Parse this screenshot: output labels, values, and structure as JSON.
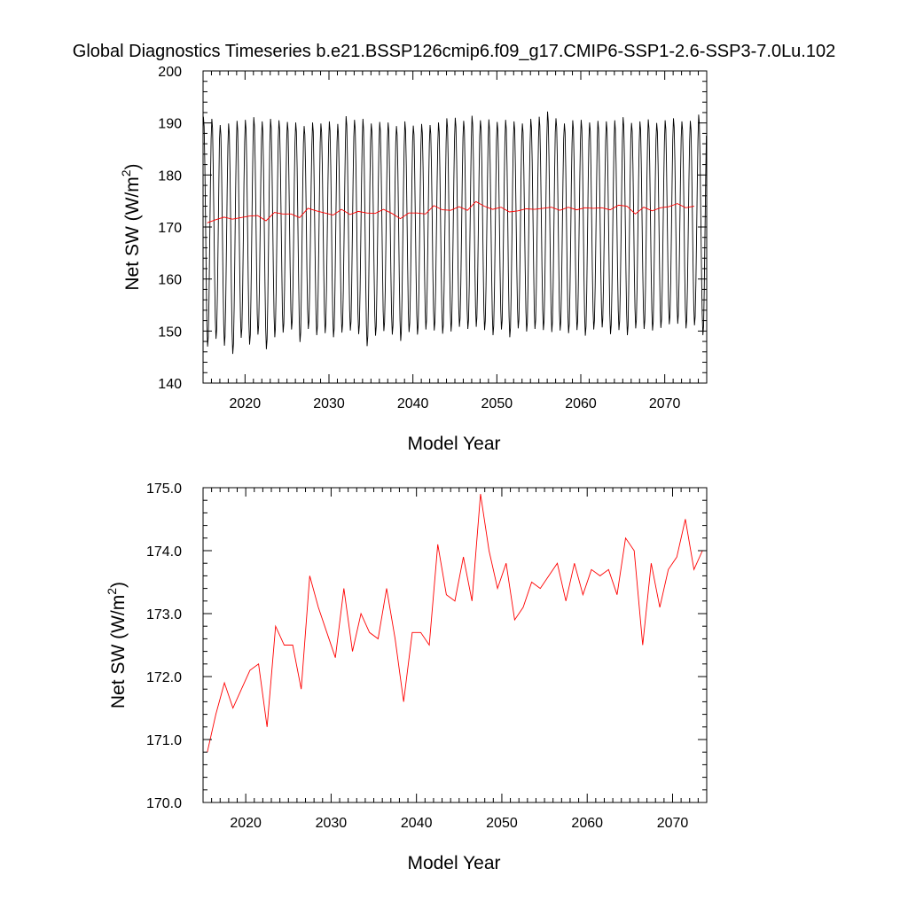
{
  "title": "Global Diagnostics Timeseries b.e21.BSSP126cmip6.f09_g17.CMIP6-SSP1-2.6-SSP3-7.0Lu.102",
  "chart_data": [
    {
      "type": "line",
      "xlabel": "Model Year",
      "ylabel": "Net SW (W/m",
      "ylabel_sup": "2",
      "ylabel_close": ")",
      "xlim": [
        2015,
        2075
      ],
      "ylim": [
        140,
        200
      ],
      "x_ticks": [
        2020,
        2030,
        2040,
        2050,
        2060,
        2070
      ],
      "y_ticks": [
        140,
        150,
        160,
        170,
        180,
        190,
        200
      ],
      "y_tick_labels": [
        "140",
        "150",
        "160",
        "170",
        "180",
        "190",
        "200"
      ],
      "monthly_series": {
        "color": "#000000",
        "start_year": 2015,
        "annual_max": [
          191.2,
          190.8,
          189.6,
          189.9,
          190.4,
          190.6,
          191.1,
          190.3,
          190.8,
          190.5,
          190.2,
          190.1,
          189.4,
          190.1,
          189.9,
          190.3,
          189.8,
          191.3,
          190.6,
          190.8,
          189.9,
          190.2,
          190.1,
          189.4,
          190.3,
          189.5,
          189.8,
          189.6,
          190.1,
          190.9,
          191.0,
          190.4,
          191.4,
          190.5,
          190.7,
          190.2,
          190.6,
          190.3,
          189.9,
          190.8,
          191.2,
          192.2,
          190.9,
          189.9,
          190.5,
          190.6,
          190.1,
          190.4,
          190.3,
          190.5,
          191.1,
          190.0,
          190.3,
          190.7,
          190.0,
          190.5,
          190.9,
          190.3,
          190.4,
          191.6
        ],
        "annual_min": [
          147.0,
          148.5,
          147.2,
          145.6,
          148.7,
          147.4,
          149.3,
          146.5,
          148.8,
          149.7,
          150.3,
          147.9,
          150.4,
          149.2,
          149.6,
          148.8,
          149.7,
          150.1,
          149.4,
          147.1,
          149.1,
          150.0,
          149.3,
          148.1,
          149.8,
          149.3,
          150.3,
          150.1,
          149.5,
          149.9,
          150.8,
          150.4,
          150.8,
          150.2,
          149.2,
          150.3,
          148.8,
          150.5,
          149.9,
          150.4,
          150.2,
          149.8,
          150.1,
          149.6,
          150.2,
          149.1,
          150.3,
          150.7,
          149.4,
          150.2,
          149.2,
          150.5,
          150.4,
          150.1,
          150.6,
          151.3,
          151.4,
          150.5,
          151.1,
          149.2
        ]
      },
      "annual_series": {
        "color": "#ff0000",
        "start_year": 2015.5,
        "values": [
          170.8,
          171.4,
          171.9,
          171.5,
          171.8,
          172.1,
          172.2,
          171.2,
          172.8,
          172.5,
          172.5,
          171.8,
          173.6,
          173.1,
          172.7,
          172.3,
          173.4,
          172.4,
          173.0,
          172.7,
          172.6,
          173.4,
          172.6,
          171.6,
          172.7,
          172.7,
          172.5,
          174.1,
          173.3,
          173.2,
          173.9,
          173.2,
          174.9,
          174.0,
          173.4,
          173.8,
          172.9,
          173.1,
          173.5,
          173.4,
          173.6,
          173.8,
          173.2,
          173.8,
          173.3,
          173.7,
          173.6,
          173.7,
          173.3,
          174.2,
          174.0,
          172.5,
          173.8,
          173.1,
          173.7,
          173.9,
          174.5,
          173.7,
          174.0
        ]
      }
    },
    {
      "type": "line",
      "xlabel": "Model Year",
      "ylabel": "Net SW (W/m",
      "ylabel_sup": "2",
      "ylabel_close": ")",
      "xlim": [
        2015,
        2074
      ],
      "ylim": [
        170,
        175
      ],
      "x_ticks": [
        2020,
        2030,
        2040,
        2050,
        2060,
        2070
      ],
      "y_ticks": [
        170,
        171,
        172,
        173,
        174,
        175
      ],
      "y_tick_labels": [
        "170.0",
        "171.0",
        "172.0",
        "173.0",
        "174.0",
        "175.0"
      ],
      "annual_series": {
        "color": "#ff0000",
        "start_year": 2015.5,
        "values": [
          170.8,
          171.4,
          171.9,
          171.5,
          171.8,
          172.1,
          172.2,
          171.2,
          172.8,
          172.5,
          172.5,
          171.8,
          173.6,
          173.1,
          172.7,
          172.3,
          173.4,
          172.4,
          173.0,
          172.7,
          172.6,
          173.4,
          172.6,
          171.6,
          172.7,
          172.7,
          172.5,
          174.1,
          173.3,
          173.2,
          173.9,
          173.2,
          174.9,
          174.0,
          173.4,
          173.8,
          172.9,
          173.1,
          173.5,
          173.4,
          173.6,
          173.8,
          173.2,
          173.8,
          173.3,
          173.7,
          173.6,
          173.7,
          173.3,
          174.2,
          174.0,
          172.5,
          173.8,
          173.1,
          173.7,
          173.9,
          174.5,
          173.7,
          174.0
        ]
      }
    }
  ]
}
